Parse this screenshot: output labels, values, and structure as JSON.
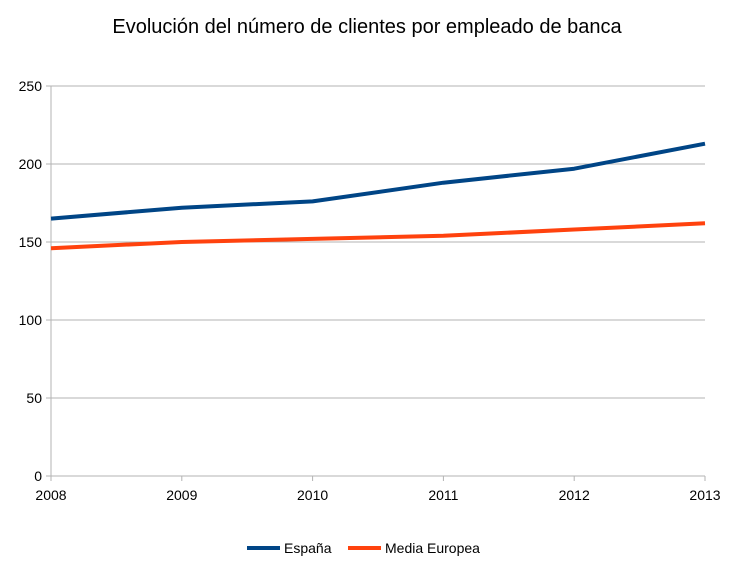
{
  "chart_data": {
    "type": "line",
    "title": "Evolución del número de clientes por empleado de banca",
    "xlabel": "",
    "ylabel": "",
    "categories": [
      "2008",
      "2009",
      "2010",
      "2011",
      "2012",
      "2013"
    ],
    "ylim": [
      0,
      250
    ],
    "yticks": [
      "0",
      "50",
      "100",
      "150",
      "200",
      "250"
    ],
    "grid": true,
    "legend": "bottom",
    "series": [
      {
        "name": "España",
        "color": "#004586",
        "values": [
          165,
          172,
          176,
          188,
          197,
          213
        ]
      },
      {
        "name": "Media Europea",
        "color": "#ff420e",
        "values": [
          146,
          150,
          152,
          154,
          158,
          162
        ]
      }
    ]
  }
}
